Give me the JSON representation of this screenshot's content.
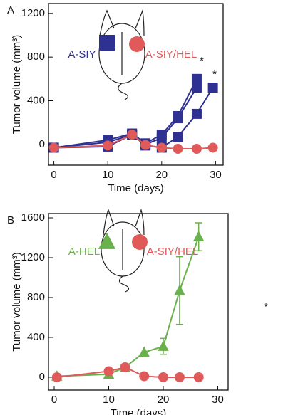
{
  "chart_data": [
    {
      "type": "line",
      "panel_label": "A",
      "xlabel": "Time (days)",
      "ylabel": "Tumor volume (mm³)",
      "xlim": [
        -1,
        31.4
      ],
      "ylim": [
        -190,
        1290
      ],
      "xticks": [
        0,
        10,
        20,
        30
      ],
      "yticks": [
        0,
        400,
        800,
        1200
      ],
      "annotations": [
        "*",
        "*"
      ],
      "series": [
        {
          "name": "A-SIY",
          "color": "#2e3192",
          "marker": "square",
          "x": [
            0,
            10,
            14.5,
            17,
            20,
            23,
            26.5
          ],
          "values": [
            -30,
            40,
            100,
            10,
            90,
            260,
            600
          ]
        },
        {
          "color": "#2e3192",
          "marker": "square",
          "x": [
            0,
            10,
            14.5,
            17,
            20,
            23,
            26.5
          ],
          "values": [
            -30,
            20,
            90,
            0,
            60,
            240,
            520
          ]
        },
        {
          "color": "#2e3192",
          "marker": "square",
          "x": [
            0,
            10,
            14.5,
            17,
            20,
            23,
            26.5,
            29.5
          ],
          "values": [
            -30,
            -20,
            90,
            -10,
            -30,
            70,
            280,
            520
          ]
        },
        {
          "name": "A-SIY/HEL",
          "color": "#e05a5a",
          "marker": "circle",
          "x": [
            0,
            10,
            14.5,
            17,
            20,
            23,
            26.5,
            29.5
          ],
          "values": [
            -30,
            -10,
            90,
            -5,
            -30,
            -40,
            -40,
            -30
          ]
        }
      ]
    },
    {
      "type": "line",
      "panel_label": "B",
      "xlabel": "Time (days)",
      "ylabel": "Tumor volume (mm³)",
      "xlim": [
        -1.05,
        31.9
      ],
      "ylim": [
        -129,
        1643
      ],
      "xticks": [
        0,
        10,
        20,
        30
      ],
      "yticks": [
        0,
        400,
        800,
        1200,
        1600
      ],
      "annotations": [
        "*"
      ],
      "series": [
        {
          "name": "A-HEL",
          "color": "#6ab04c",
          "marker": "triangle",
          "x": [
            0.5,
            10,
            13,
            16.5,
            20,
            23,
            26.5
          ],
          "values": [
            10,
            30,
            100,
            250,
            310,
            870,
            1410
          ],
          "errors": [
            0,
            0,
            0,
            0,
            80,
            340,
            140
          ]
        },
        {
          "name": "A-SIY/HEL",
          "color": "#e05a5a",
          "marker": "circle",
          "x": [
            0.5,
            10,
            13,
            16.5,
            20,
            23,
            26.5
          ],
          "values": [
            0,
            60,
            100,
            10,
            0,
            0,
            0
          ]
        }
      ]
    }
  ]
}
